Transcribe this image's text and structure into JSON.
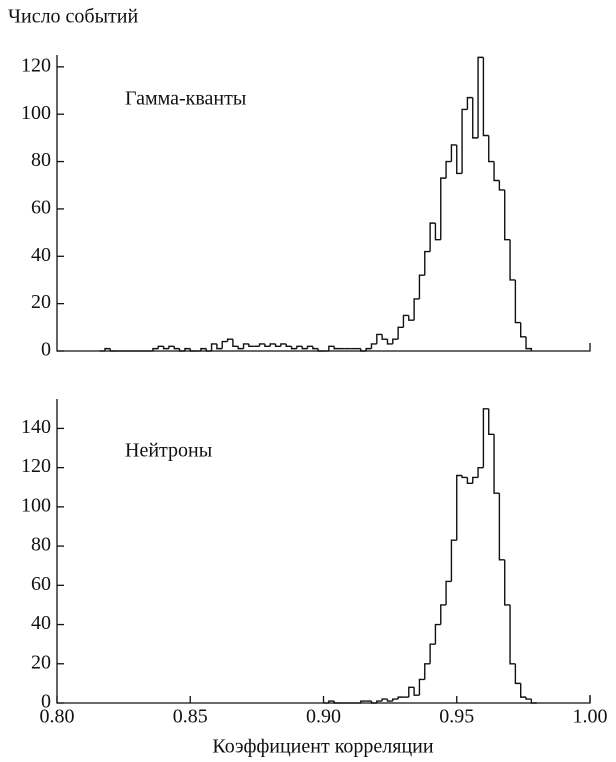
{
  "chart_data": [
    {
      "type": "histogram",
      "y_label": "Число событий",
      "annotation": "Гамма-кванты",
      "bins": [
        0.816,
        0.818,
        0.82,
        0.822,
        0.824,
        0.826,
        0.828,
        0.83,
        0.832,
        0.834,
        0.836,
        0.838,
        0.84,
        0.842,
        0.844,
        0.846,
        0.848,
        0.85,
        0.852,
        0.854,
        0.856,
        0.858,
        0.86,
        0.862,
        0.864,
        0.866,
        0.868,
        0.87,
        0.872,
        0.874,
        0.876,
        0.878,
        0.88,
        0.882,
        0.884,
        0.886,
        0.888,
        0.89,
        0.892,
        0.894,
        0.896,
        0.898,
        0.9,
        0.902,
        0.904,
        0.906,
        0.908,
        0.91,
        0.912,
        0.914,
        0.916,
        0.918,
        0.92,
        0.922,
        0.924,
        0.926,
        0.928,
        0.93,
        0.932,
        0.934,
        0.936,
        0.938,
        0.94,
        0.942,
        0.944,
        0.946,
        0.948,
        0.95,
        0.952,
        0.954,
        0.956,
        0.958,
        0.96,
        0.962,
        0.964,
        0.966,
        0.968,
        0.97,
        0.972,
        0.974,
        0.976,
        0.978
      ],
      "values": [
        0,
        1,
        0,
        0,
        0,
        0,
        0,
        0,
        0,
        0,
        1,
        2,
        1,
        2,
        1,
        0,
        1,
        0,
        0,
        1,
        0,
        3,
        1,
        4,
        5,
        2,
        1,
        3,
        2,
        2,
        3,
        2,
        3,
        2,
        3,
        2,
        1,
        2,
        1,
        2,
        1,
        0,
        0,
        2,
        1,
        1,
        1,
        1,
        1,
        0,
        1,
        3,
        7,
        5,
        3,
        5,
        10,
        15,
        13,
        22,
        32,
        42,
        54,
        47,
        73,
        80,
        87,
        75,
        102,
        107,
        90,
        124,
        91,
        80,
        72,
        68,
        47,
        30,
        12,
        6,
        1
      ],
      "color": "#111111",
      "xlim": [
        0.8,
        1.0
      ],
      "ylim": [
        0,
        125
      ],
      "yticks": [
        0,
        20,
        40,
        60,
        80,
        100,
        120
      ]
    },
    {
      "type": "histogram",
      "x_label": "Коэффициент корреляции",
      "annotation": "Нейтроны",
      "bins": [
        0.9,
        0.902,
        0.904,
        0.906,
        0.908,
        0.91,
        0.912,
        0.914,
        0.916,
        0.918,
        0.92,
        0.922,
        0.924,
        0.926,
        0.928,
        0.93,
        0.932,
        0.934,
        0.936,
        0.938,
        0.94,
        0.942,
        0.944,
        0.946,
        0.948,
        0.95,
        0.952,
        0.954,
        0.956,
        0.958,
        0.96,
        0.962,
        0.964,
        0.966,
        0.968,
        0.97,
        0.972,
        0.974,
        0.976,
        0.978,
        0.98
      ],
      "values": [
        0,
        1,
        0,
        0,
        0,
        0,
        0,
        1,
        1,
        0,
        1,
        2,
        1,
        2,
        3,
        3,
        8,
        4,
        12,
        20,
        30,
        40,
        50,
        62,
        83,
        116,
        115,
        112,
        115,
        120,
        150,
        137,
        107,
        73,
        50,
        20,
        10,
        3,
        2,
        0
      ],
      "color": "#111111",
      "xlim": [
        0.8,
        1.0
      ],
      "ylim": [
        0,
        155
      ],
      "yticks": [
        0,
        20,
        40,
        60,
        80,
        100,
        120,
        140
      ],
      "xticks": [
        {
          "value": 0.8,
          "label": "0.80"
        },
        {
          "value": 0.85,
          "label": "0.85"
        },
        {
          "value": 0.9,
          "label": "0.90"
        },
        {
          "value": 0.95,
          "label": "0.95"
        },
        {
          "value": 1.0,
          "label": "1.00"
        }
      ]
    }
  ]
}
